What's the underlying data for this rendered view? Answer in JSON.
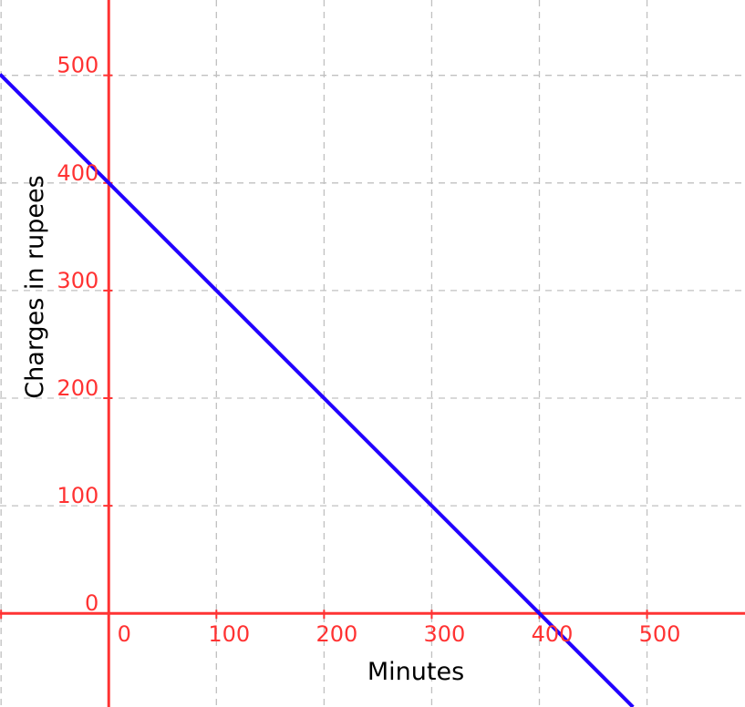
{
  "chart_data": {
    "type": "line",
    "title": "",
    "xlabel": "Minutes",
    "ylabel": "Charges in rupees",
    "xlim": [
      -101,
      591
    ],
    "ylim": [
      -87,
      570
    ],
    "x_ticks": [
      0,
      100,
      200,
      300,
      400,
      500
    ],
    "y_ticks": [
      0,
      100,
      200,
      300,
      400,
      500
    ],
    "x_tick_labels": [
      "0",
      "100",
      "200",
      "300",
      "400",
      "500"
    ],
    "y_tick_labels": [
      "0",
      "100",
      "200",
      "300",
      "400",
      "500"
    ],
    "grid": true,
    "grid_x": [
      -100,
      100,
      200,
      300,
      400,
      500
    ],
    "grid_y": [
      100,
      200,
      300,
      400,
      500
    ],
    "series": [
      {
        "x": [
          -101,
          487
        ],
        "y": [
          501,
          -87
        ],
        "equation": "y = 400 - x",
        "color": "#2200ff"
      }
    ],
    "colors": {
      "axis": "#ff3333",
      "tick_labels": "#ff3333",
      "grid": "#c0c0c0",
      "line": "#2200ff",
      "axis_labels": "#000000"
    }
  }
}
